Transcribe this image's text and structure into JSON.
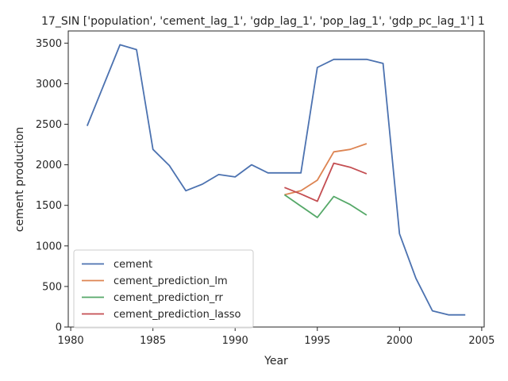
{
  "chart_data": {
    "type": "line",
    "title": "17_SIN ['population', 'cement_lag_1', 'gdp_lag_1', 'pop_lag_1', 'gdp_pc_lag_1'] 1",
    "xlabel": "Year",
    "ylabel": "cement production",
    "xlim": [
      1979.85,
      2005.15
    ],
    "ylim": [
      0,
      3650
    ],
    "xticks": [
      1980,
      1985,
      1990,
      1995,
      2000,
      2005
    ],
    "yticks": [
      0,
      500,
      1000,
      1500,
      2000,
      2500,
      3000,
      3500
    ],
    "grid": false,
    "legend_position": "lower-left",
    "series": [
      {
        "name": "cement",
        "color": "#4c72b0",
        "x": [
          1981,
          1982,
          1983,
          1984,
          1985,
          1986,
          1987,
          1988,
          1989,
          1990,
          1991,
          1992,
          1993,
          1994,
          1995,
          1996,
          1997,
          1998,
          1999,
          2000,
          2001,
          2002,
          2003,
          2004
        ],
        "y": [
          2480,
          2980,
          3480,
          3420,
          2190,
          1990,
          1680,
          1760,
          1880,
          1850,
          2000,
          1900,
          1900,
          1900,
          3200,
          3300,
          3300,
          3300,
          3250,
          1150,
          600,
          200,
          150,
          150
        ]
      },
      {
        "name": "cement_prediction_lm",
        "color": "#dd8452",
        "x": [
          1993,
          1994,
          1995,
          1996,
          1997,
          1998
        ],
        "y": [
          1630,
          1680,
          1810,
          2160,
          2190,
          2260
        ]
      },
      {
        "name": "cement_prediction_rr",
        "color": "#55a868",
        "x": [
          1993,
          1994,
          1995,
          1996,
          1997,
          1998
        ],
        "y": [
          1630,
          1490,
          1350,
          1610,
          1510,
          1380
        ]
      },
      {
        "name": "cement_prediction_lasso",
        "color": "#c44e52",
        "x": [
          1993,
          1994,
          1995,
          1996,
          1997,
          1998
        ],
        "y": [
          1720,
          1640,
          1550,
          2020,
          1970,
          1890
        ]
      }
    ]
  }
}
